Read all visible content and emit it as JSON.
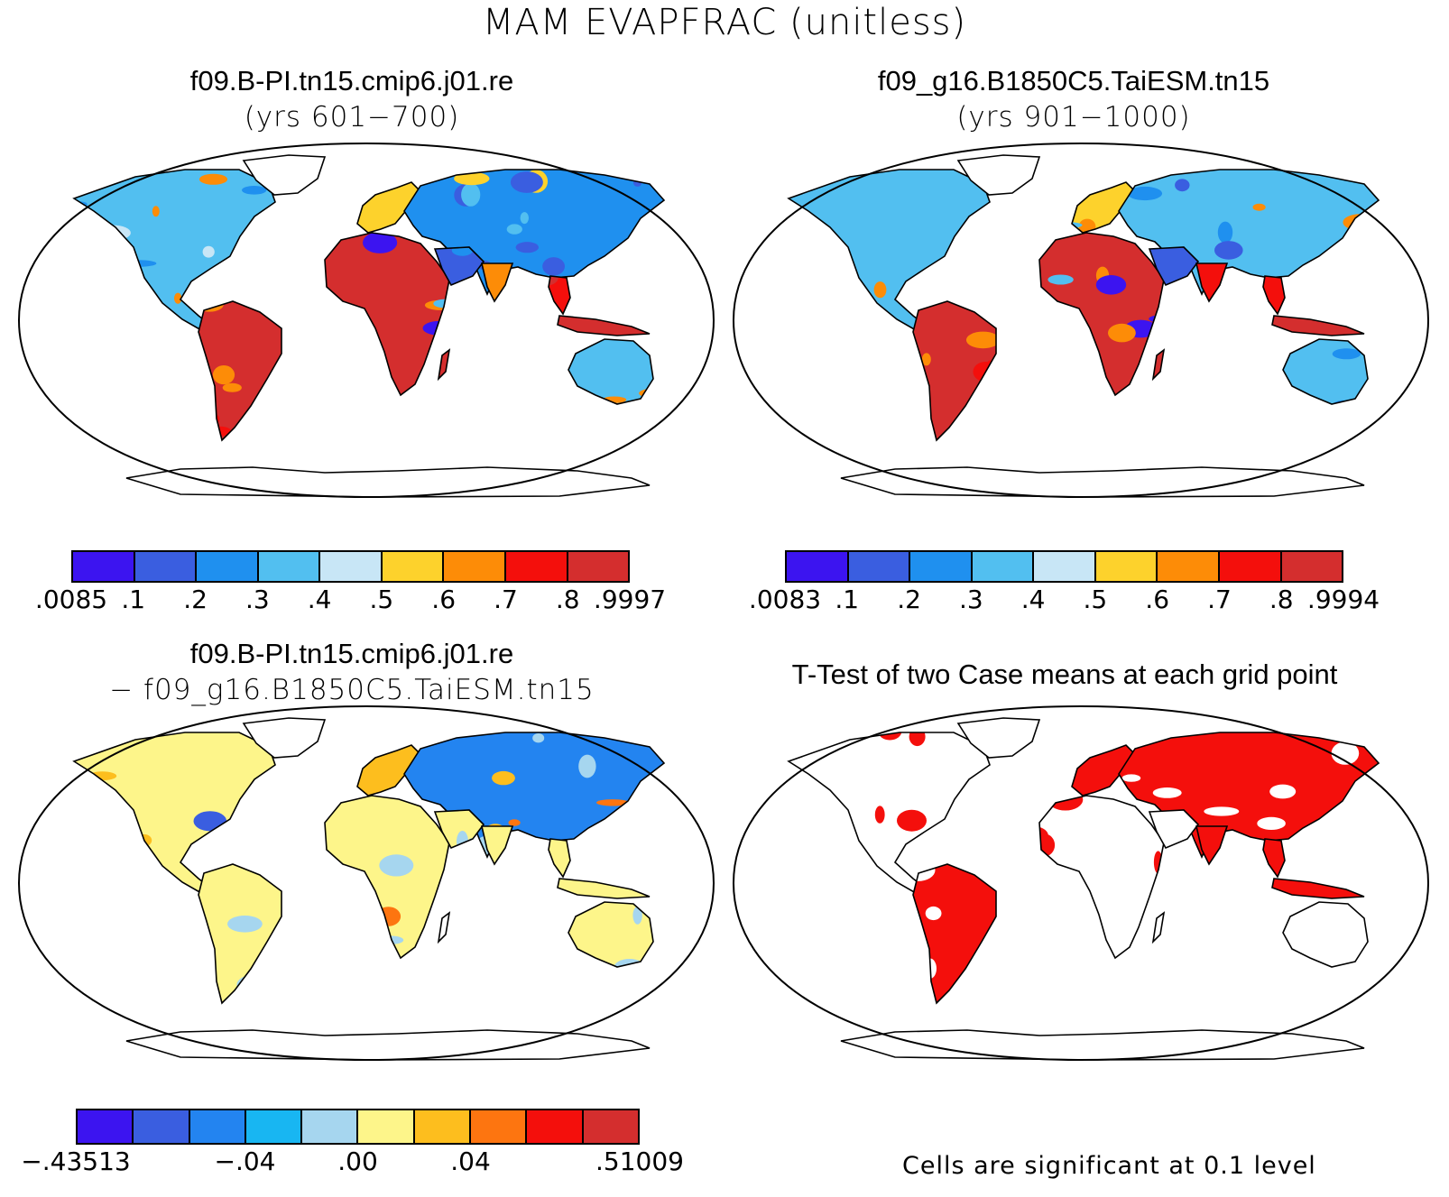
{
  "figure": {
    "title": "MAM EVAPFRAC (unitless)"
  },
  "panels": [
    {
      "id": "case1",
      "title_line1": "f09.B-PI.tn15.cmip6.j01.re",
      "title_line2": "(yrs 601−700)",
      "colorbar": {
        "colors": [
          "#3c14f0",
          "#3a5ee0",
          "#1f90ef",
          "#52bff0",
          "#c8e6f6",
          "#fdd22c",
          "#fd8c07",
          "#f40f0c",
          "#d42e2e"
        ],
        "labels": [
          ".0085",
          ".1",
          ".2",
          ".3",
          ".4",
          ".5",
          ".6",
          ".7",
          ".8",
          ".9997"
        ]
      }
    },
    {
      "id": "case2",
      "title_line1": "f09_g16.B1850C5.TaiESM.tn15",
      "title_line2": "(yrs 901−1000)",
      "colorbar": {
        "colors": [
          "#3c14f0",
          "#3a5ee0",
          "#1f90ef",
          "#52bff0",
          "#c8e6f6",
          "#fdd22c",
          "#fd8c07",
          "#f40f0c",
          "#d42e2e"
        ],
        "labels": [
          ".0083",
          ".1",
          ".2",
          ".3",
          ".4",
          ".5",
          ".6",
          ".7",
          ".8",
          ".9994"
        ]
      }
    },
    {
      "id": "difference",
      "title_line1": "f09.B-PI.tn15.cmip6.j01.re",
      "title_line2": "− f09_g16.B1850C5.TaiESM.tn15",
      "colorbar": {
        "colors": [
          "#3c14f0",
          "#3a5ee0",
          "#2384f0",
          "#18b6f2",
          "#a6d6ef",
          "#fdf58a",
          "#fdbe1e",
          "#fd7510",
          "#f40f0c",
          "#d42e2e"
        ],
        "labels": [
          "−.43513",
          "−.04",
          ".00",
          ".04",
          ".51009"
        ],
        "label_positions": [
          0,
          0.3,
          0.5,
          0.7,
          1.0
        ]
      }
    },
    {
      "id": "ttest",
      "title_line1": "T-Test of two Case means at each grid point",
      "title_line2": "",
      "footnote": "Cells are significant at 0.1 level"
    }
  ]
}
